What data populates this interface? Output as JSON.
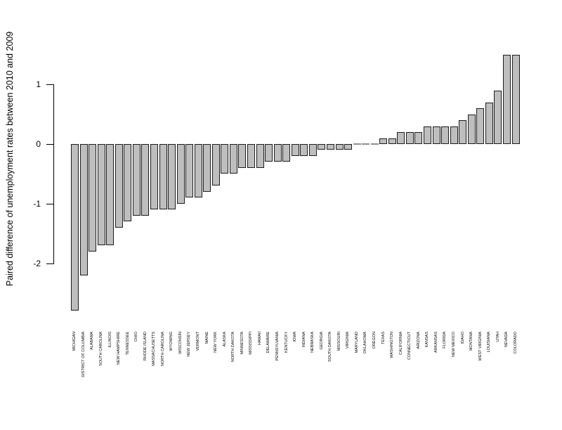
{
  "chart_data": {
    "type": "bar",
    "title": "",
    "xlabel": "",
    "ylabel": "Paired difference of unemployment rates between 2010 and 2009",
    "categories": [
      "MICHIGAN",
      "DISTRICT OF COLUMBIA",
      "ALABAMA",
      "SOUTH CAROLINA",
      "ILLINOIS",
      "NEW HAMPSHIRE",
      "TENNESSEE",
      "OHIO",
      "RHODE ISLAND",
      "MASSACHUSETTS",
      "NORTH CAROLINA",
      "WYOMING",
      "WISCONSIN",
      "NEW JERSEY",
      "VERMONT",
      "MAINE",
      "NEW YORK",
      "ALASKA",
      "NORTH DAKOTA",
      "MINNESOTA",
      "MISSISSIPPI",
      "HAWAII",
      "DELAWARE",
      "PENNSYLVANIA",
      "KENTUCKY",
      "IOWA",
      "INDIANA",
      "NEBRASKA",
      "GEORGIA",
      "SOUTH DAKOTA",
      "MISSOURI",
      "VIRGINIA",
      "MARYLAND",
      "OKLAHOMA",
      "OREGON",
      "TEXAS",
      "WASHINGTON",
      "CALIFORNIA",
      "CONNECTICUT",
      "ARIZONA",
      "KANSAS",
      "ARKANSAS",
      "FLORIDA",
      "NEW MEXICO",
      "IDAHO",
      "MONTANA",
      "WEST VIRGINIA",
      "LOUISIANA",
      "UTAH",
      "NEVADA",
      "COLORADO"
    ],
    "values": [
      -2.8,
      -2.2,
      -1.8,
      -1.7,
      -1.7,
      -1.4,
      -1.3,
      -1.2,
      -1.2,
      -1.1,
      -1.1,
      -1.1,
      -1.0,
      -0.9,
      -0.9,
      -0.8,
      -0.7,
      -0.5,
      -0.5,
      -0.4,
      -0.4,
      -0.4,
      -0.3,
      -0.3,
      -0.3,
      -0.2,
      -0.2,
      -0.2,
      -0.1,
      -0.1,
      -0.1,
      -0.1,
      0,
      0,
      0,
      0.1,
      0.1,
      0.2,
      0.2,
      0.2,
      0.3,
      0.3,
      0.3,
      0.3,
      0.4,
      0.5,
      0.6,
      0.7,
      0.9,
      1.5,
      1.5
    ],
    "ytick_labels": [
      "1",
      "0",
      "-1",
      "-2"
    ],
    "yticks": [
      1,
      0,
      -1,
      -2
    ],
    "ylim": [
      -2.9,
      1.6
    ],
    "grid": false,
    "legend": "none",
    "bar_fill": "#bebebe",
    "bar_border": "#1c1c1c",
    "zero_bar_color": "#8f8f8f",
    "background": "#ffffff",
    "text_color": "#000000"
  }
}
